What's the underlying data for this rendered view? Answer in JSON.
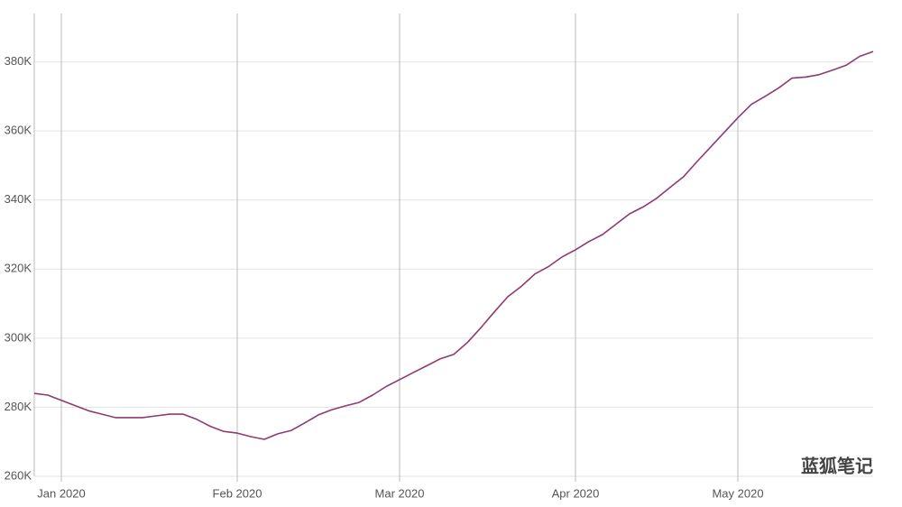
{
  "chart_data": {
    "type": "line",
    "categories": [
      null,
      null,
      "Jan 2020",
      null,
      null,
      null,
      null,
      null,
      null,
      null,
      null,
      null,
      null,
      null,
      null,
      "Feb 2020",
      null,
      null,
      null,
      null,
      null,
      null,
      null,
      null,
      null,
      null,
      null,
      "Mar 2020",
      null,
      null,
      null,
      null,
      null,
      null,
      null,
      null,
      null,
      null,
      null,
      null,
      "Apr 2020",
      null,
      null,
      null,
      null,
      null,
      null,
      null,
      null,
      null,
      null,
      null,
      "May 2020",
      null,
      null,
      null,
      null,
      null,
      null,
      null,
      null,
      null,
      null
    ],
    "values": [
      284000,
      283500,
      282000,
      280500,
      279000,
      278000,
      277000,
      277000,
      277000,
      277500,
      278000,
      278000,
      276500,
      274500,
      273000,
      272500,
      271500,
      270700,
      272300,
      273300,
      275500,
      277800,
      279300,
      280400,
      281400,
      283500,
      286000,
      288000,
      290000,
      292000,
      294000,
      295300,
      298700,
      303000,
      307600,
      312000,
      315000,
      318600,
      320700,
      323500,
      325600,
      328000,
      330000,
      333000,
      336000,
      338000,
      340500,
      343700,
      346800,
      351200,
      355400,
      359600,
      363800,
      367700,
      370000,
      372400,
      375300,
      375600,
      376300,
      377600,
      379000,
      381600,
      383000
    ],
    "color": "#8e3b6e",
    "ylim": [
      260000,
      394000
    ],
    "yticks": [
      {
        "value": 260000,
        "label": "260K"
      },
      {
        "value": 280000,
        "label": "280K"
      },
      {
        "value": 300000,
        "label": "300K"
      },
      {
        "value": 320000,
        "label": "320K"
      },
      {
        "value": 340000,
        "label": "340K"
      },
      {
        "value": 360000,
        "label": "360K"
      },
      {
        "value": 380000,
        "label": "380K"
      }
    ],
    "grid": true,
    "watermark": "蓝狐笔记"
  }
}
